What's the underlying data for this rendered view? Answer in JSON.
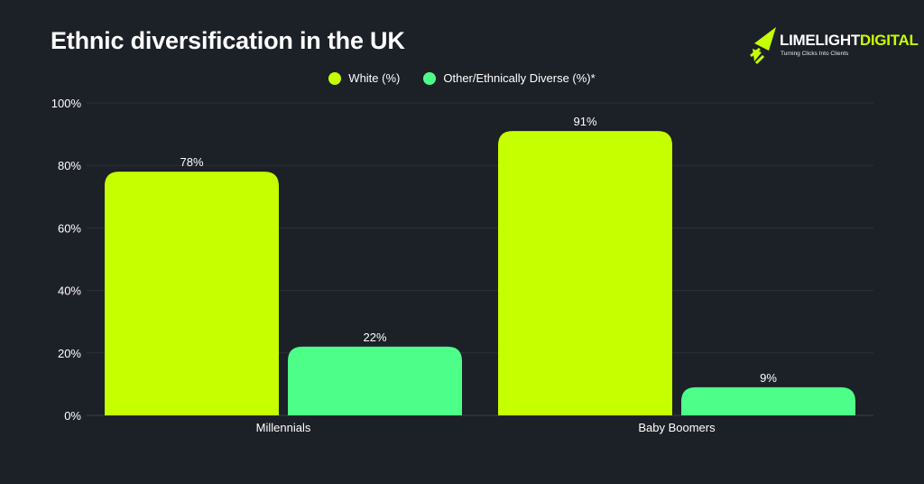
{
  "page": {
    "background": "#1c2027",
    "title": "Ethnic diversification in the UK"
  },
  "logo": {
    "word_primary": "LIMELIGHT",
    "word_secondary": "DIGITAL",
    "tagline": "Turning Clicks Into Clients",
    "accent": "#c6ff00",
    "icon": "rocket-arrow-icon"
  },
  "chart_data": {
    "type": "bar",
    "title": "Ethnic diversification in the UK",
    "categories": [
      "Millennials",
      "Baby Boomers"
    ],
    "series": [
      {
        "name": "White (%)",
        "values": [
          78,
          91
        ],
        "color": "#c6ff00"
      },
      {
        "name": "Other/Ethnically Diverse (%)*",
        "values": [
          22,
          9
        ],
        "color": "#4dff88"
      }
    ],
    "data_labels": [
      [
        "78%",
        "91%"
      ],
      [
        "22%",
        "9%"
      ]
    ],
    "yticks": [
      "0%",
      "20%",
      "40%",
      "60%",
      "80%",
      "100%"
    ],
    "ylim": [
      0,
      100
    ],
    "xlabel": "",
    "ylabel": "",
    "grid": true,
    "legend_position": "top-center"
  }
}
